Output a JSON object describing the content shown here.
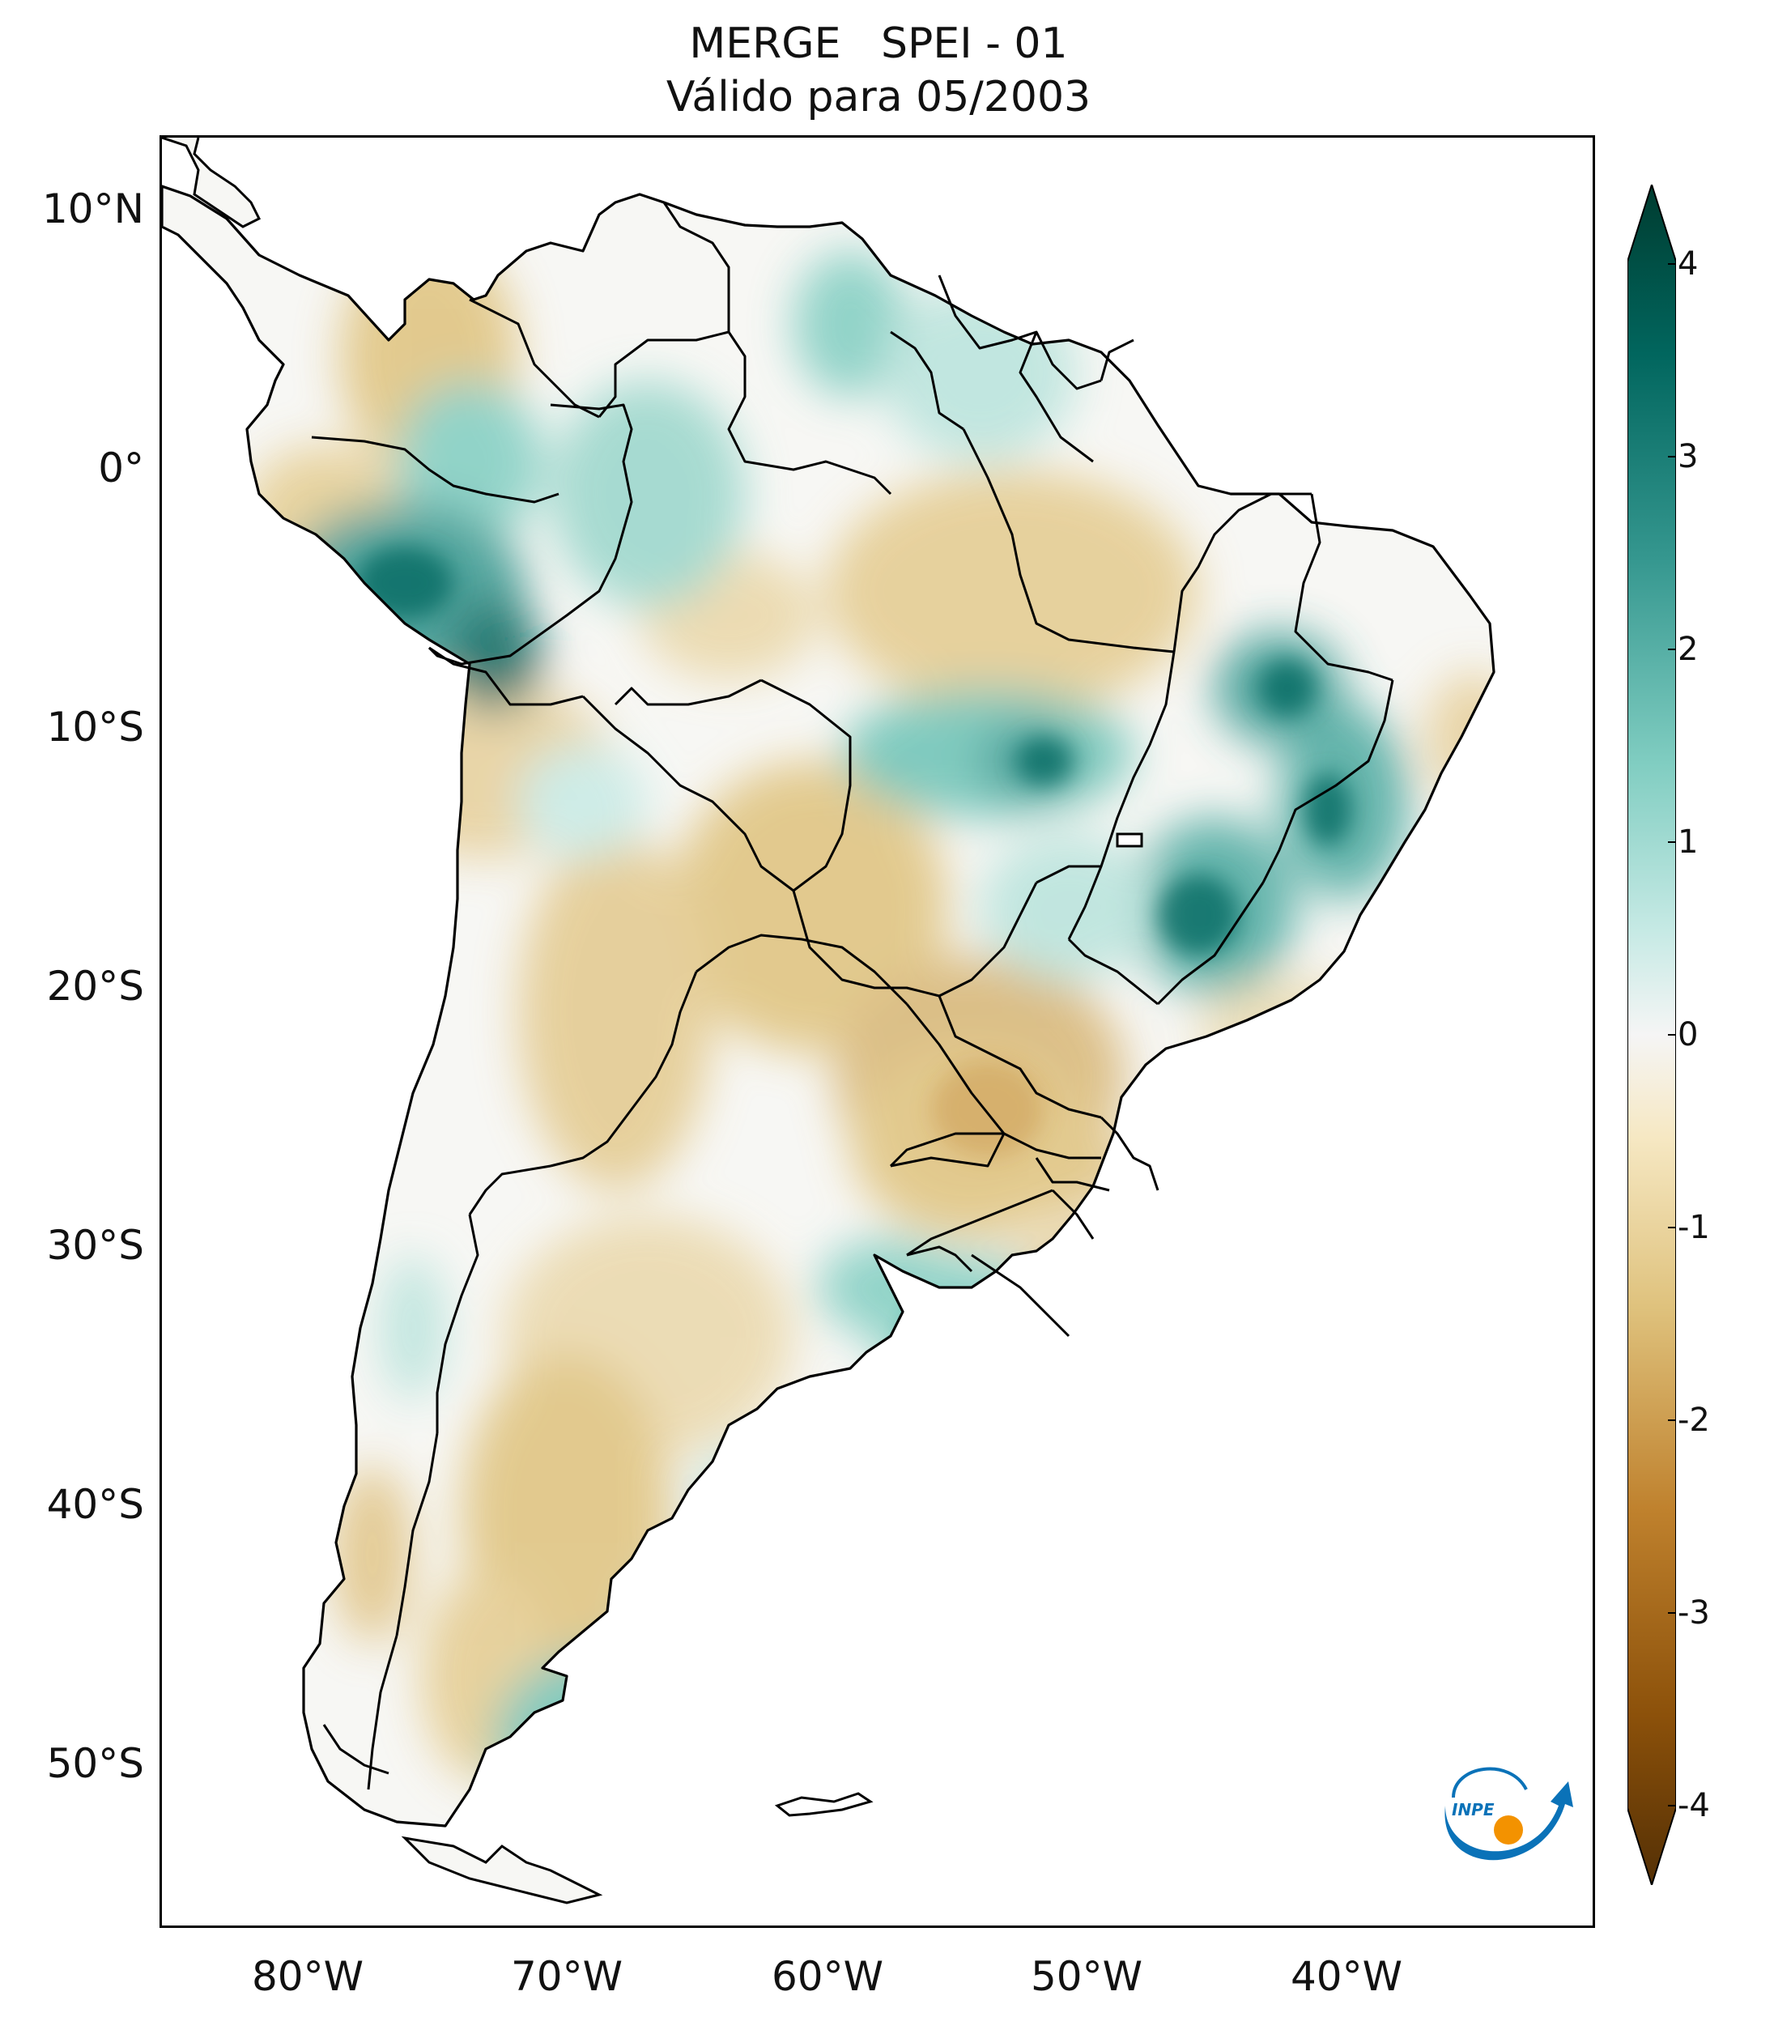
{
  "title": {
    "line1": "MERGE   SPEI - 01",
    "line2": "Válido para 05/2003"
  },
  "axes": {
    "lat_labels": [
      "10°N",
      "0°",
      "10°S",
      "20°S",
      "30°S",
      "40°S",
      "50°S"
    ],
    "lon_labels": [
      "80°W",
      "70°W",
      "60°W",
      "50°W",
      "40°W"
    ]
  },
  "colorbar": {
    "ticks": [
      "4",
      "3",
      "2",
      "1",
      "0",
      "-1",
      "-2",
      "-3",
      "-4"
    ],
    "min": -4,
    "max": 4,
    "extend": "both",
    "colors": {
      "dry_extreme": "#543005",
      "dry_strong": "#8c510a",
      "dry_moderate": "#bf812d",
      "dry_light": "#dfc27d",
      "dry_weak": "#f6e8c3",
      "neutral": "#f5f5f5",
      "wet_weak": "#c7eae5",
      "wet_light": "#80cdc1",
      "wet_moderate": "#35978f",
      "wet_strong": "#01665e",
      "wet_extreme": "#003c30"
    }
  },
  "logo": {
    "text": "INPE",
    "colors": {
      "arrow": "#0a72b8",
      "sun": "#f39200"
    }
  },
  "map": {
    "extent_lon": [
      -85,
      -30
    ],
    "extent_lat": [
      -56,
      13
    ],
    "region": "South America",
    "variable": "SPEI-01 (Standardized Precipitation-Evapotranspiration Index, 1 month)"
  }
}
